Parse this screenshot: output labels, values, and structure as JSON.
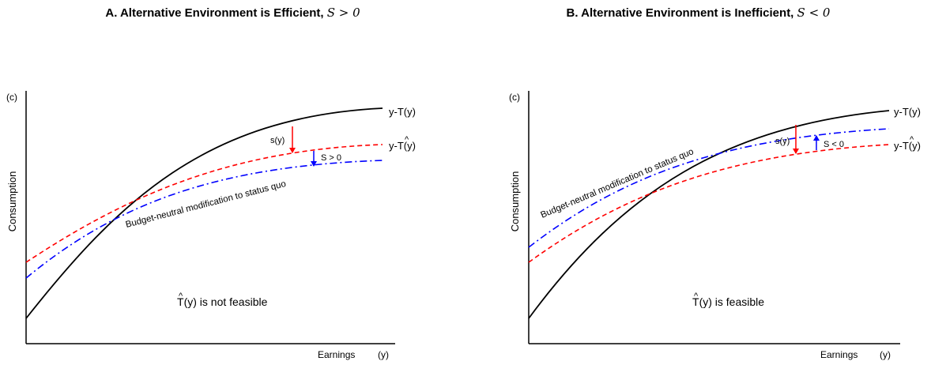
{
  "panels": [
    {
      "title_text": "A. Alternative Environment is Efficient,",
      "title_math": "S > 0",
      "y_unit": "(c)",
      "y_axis_label": "Consumption",
      "x_axis_label": "Earnings",
      "x_unit": "(y)",
      "curve_label_status_quo": "y-T(y)",
      "curve_label_alt": "y-T(y)",
      "hat_mark": "^",
      "dashdot_label": "Budget-neutral modification to status quo",
      "arrow_label_s_of_y": "s(y)",
      "arrow_label_S": "S > 0",
      "feasibility_prefix": "T",
      "feasibility_text": "(y) is not feasible",
      "colors": {
        "status_quo": "#000000",
        "alternative": "#ff0000",
        "modification": "#0000ff"
      }
    },
    {
      "title_text": "B. Alternative Environment is Inefficient,",
      "title_math": "S < 0",
      "y_unit": "(c)",
      "y_axis_label": "Consumption",
      "x_axis_label": "Earnings",
      "x_unit": "(y)",
      "curve_label_status_quo": "y-T(y)",
      "curve_label_alt": "y-T(y)",
      "hat_mark": "^",
      "dashdot_label": "Budget-neutral modification to status quo",
      "arrow_label_s_of_y": "s(y)",
      "arrow_label_S": "S < 0",
      "feasibility_prefix": "T",
      "feasibility_text": "(y) is feasible",
      "colors": {
        "status_quo": "#000000",
        "alternative": "#ff0000",
        "modification": "#0000ff"
      }
    }
  ]
}
